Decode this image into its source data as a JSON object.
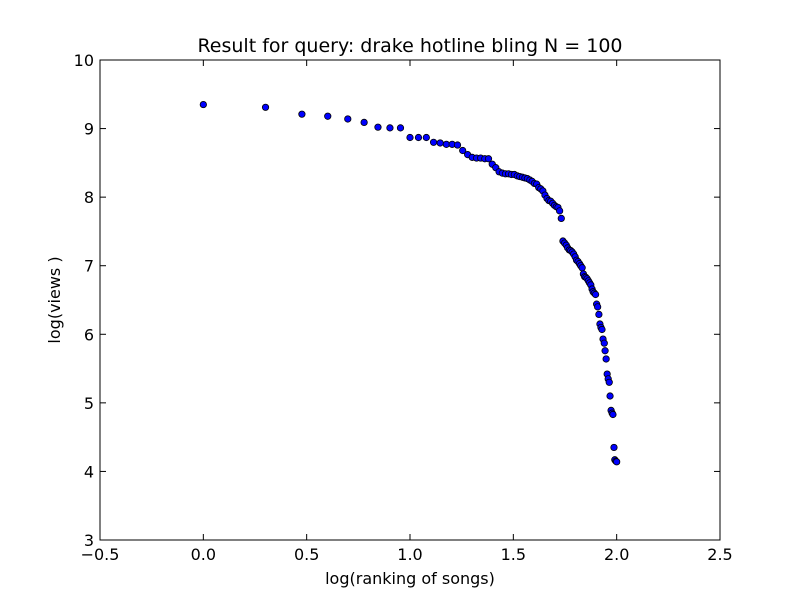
{
  "chart_data": {
    "type": "scatter",
    "title": "Result for query: drake hotline bling N = 100",
    "xlabel": "log(ranking of songs)",
    "ylabel": "log(views )",
    "xlim": [
      -0.5,
      2.5
    ],
    "ylim": [
      3,
      10
    ],
    "xticks": [
      -0.5,
      0.0,
      0.5,
      1.0,
      1.5,
      2.0,
      2.5
    ],
    "xtick_labels": [
      "−0.5",
      "0.0",
      "0.5",
      "1.0",
      "1.5",
      "2.0",
      "2.5"
    ],
    "yticks": [
      3,
      4,
      5,
      6,
      7,
      8,
      9,
      10
    ],
    "ytick_labels": [
      "3",
      "4",
      "5",
      "6",
      "7",
      "8",
      "9",
      "10"
    ],
    "grid": false,
    "marker_color": "#0000ff",
    "marker_edge_color": "#000000",
    "points": [
      {
        "x": 0.0,
        "y": 9.35
      },
      {
        "x": 0.301,
        "y": 9.31
      },
      {
        "x": 0.477,
        "y": 9.21
      },
      {
        "x": 0.602,
        "y": 9.18
      },
      {
        "x": 0.699,
        "y": 9.14
      },
      {
        "x": 0.778,
        "y": 9.09
      },
      {
        "x": 0.845,
        "y": 9.02
      },
      {
        "x": 0.903,
        "y": 9.01
      },
      {
        "x": 0.954,
        "y": 9.01
      },
      {
        "x": 1.0,
        "y": 8.87
      },
      {
        "x": 1.041,
        "y": 8.87
      },
      {
        "x": 1.079,
        "y": 8.87
      },
      {
        "x": 1.114,
        "y": 8.8
      },
      {
        "x": 1.146,
        "y": 8.79
      },
      {
        "x": 1.176,
        "y": 8.77
      },
      {
        "x": 1.204,
        "y": 8.77
      },
      {
        "x": 1.23,
        "y": 8.76
      },
      {
        "x": 1.255,
        "y": 8.68
      },
      {
        "x": 1.279,
        "y": 8.62
      },
      {
        "x": 1.301,
        "y": 8.58
      },
      {
        "x": 1.322,
        "y": 8.57
      },
      {
        "x": 1.342,
        "y": 8.57
      },
      {
        "x": 1.362,
        "y": 8.56
      },
      {
        "x": 1.38,
        "y": 8.56
      },
      {
        "x": 1.398,
        "y": 8.48
      },
      {
        "x": 1.415,
        "y": 8.43
      },
      {
        "x": 1.431,
        "y": 8.37
      },
      {
        "x": 1.447,
        "y": 8.35
      },
      {
        "x": 1.462,
        "y": 8.34
      },
      {
        "x": 1.477,
        "y": 8.34
      },
      {
        "x": 1.491,
        "y": 8.33
      },
      {
        "x": 1.505,
        "y": 8.33
      },
      {
        "x": 1.519,
        "y": 8.31
      },
      {
        "x": 1.531,
        "y": 8.3
      },
      {
        "x": 1.544,
        "y": 8.29
      },
      {
        "x": 1.556,
        "y": 8.28
      },
      {
        "x": 1.568,
        "y": 8.27
      },
      {
        "x": 1.58,
        "y": 8.25
      },
      {
        "x": 1.591,
        "y": 8.23
      },
      {
        "x": 1.602,
        "y": 8.2
      },
      {
        "x": 1.613,
        "y": 8.19
      },
      {
        "x": 1.623,
        "y": 8.14
      },
      {
        "x": 1.633,
        "y": 8.12
      },
      {
        "x": 1.643,
        "y": 8.09
      },
      {
        "x": 1.653,
        "y": 8.03
      },
      {
        "x": 1.663,
        "y": 7.98
      },
      {
        "x": 1.672,
        "y": 7.95
      },
      {
        "x": 1.681,
        "y": 7.94
      },
      {
        "x": 1.69,
        "y": 7.91
      },
      {
        "x": 1.699,
        "y": 7.88
      },
      {
        "x": 1.708,
        "y": 7.86
      },
      {
        "x": 1.716,
        "y": 7.85
      },
      {
        "x": 1.724,
        "y": 7.8
      },
      {
        "x": 1.732,
        "y": 7.69
      },
      {
        "x": 1.74,
        "y": 7.36
      },
      {
        "x": 1.748,
        "y": 7.33
      },
      {
        "x": 1.756,
        "y": 7.3
      },
      {
        "x": 1.763,
        "y": 7.26
      },
      {
        "x": 1.771,
        "y": 7.23
      },
      {
        "x": 1.778,
        "y": 7.22
      },
      {
        "x": 1.785,
        "y": 7.2
      },
      {
        "x": 1.792,
        "y": 7.17
      },
      {
        "x": 1.799,
        "y": 7.13
      },
      {
        "x": 1.806,
        "y": 7.08
      },
      {
        "x": 1.813,
        "y": 7.06
      },
      {
        "x": 1.82,
        "y": 7.03
      },
      {
        "x": 1.826,
        "y": 7.0
      },
      {
        "x": 1.833,
        "y": 6.97
      },
      {
        "x": 1.839,
        "y": 6.88
      },
      {
        "x": 1.845,
        "y": 6.84
      },
      {
        "x": 1.851,
        "y": 6.83
      },
      {
        "x": 1.857,
        "y": 6.81
      },
      {
        "x": 1.863,
        "y": 6.78
      },
      {
        "x": 1.869,
        "y": 6.75
      },
      {
        "x": 1.875,
        "y": 6.72
      },
      {
        "x": 1.881,
        "y": 6.66
      },
      {
        "x": 1.886,
        "y": 6.62
      },
      {
        "x": 1.892,
        "y": 6.6
      },
      {
        "x": 1.898,
        "y": 6.58
      },
      {
        "x": 1.903,
        "y": 6.44
      },
      {
        "x": 1.908,
        "y": 6.4
      },
      {
        "x": 1.914,
        "y": 6.29
      },
      {
        "x": 1.919,
        "y": 6.15
      },
      {
        "x": 1.924,
        "y": 6.1
      },
      {
        "x": 1.929,
        "y": 6.07
      },
      {
        "x": 1.934,
        "y": 5.93
      },
      {
        "x": 1.94,
        "y": 5.87
      },
      {
        "x": 1.944,
        "y": 5.76
      },
      {
        "x": 1.949,
        "y": 5.64
      },
      {
        "x": 1.954,
        "y": 5.42
      },
      {
        "x": 1.959,
        "y": 5.35
      },
      {
        "x": 1.964,
        "y": 5.3
      },
      {
        "x": 1.968,
        "y": 5.1
      },
      {
        "x": 1.973,
        "y": 4.89
      },
      {
        "x": 1.978,
        "y": 4.85
      },
      {
        "x": 1.982,
        "y": 4.83
      },
      {
        "x": 1.987,
        "y": 4.35
      },
      {
        "x": 1.991,
        "y": 4.17
      },
      {
        "x": 1.996,
        "y": 4.15
      },
      {
        "x": 2.0,
        "y": 4.14
      }
    ]
  }
}
